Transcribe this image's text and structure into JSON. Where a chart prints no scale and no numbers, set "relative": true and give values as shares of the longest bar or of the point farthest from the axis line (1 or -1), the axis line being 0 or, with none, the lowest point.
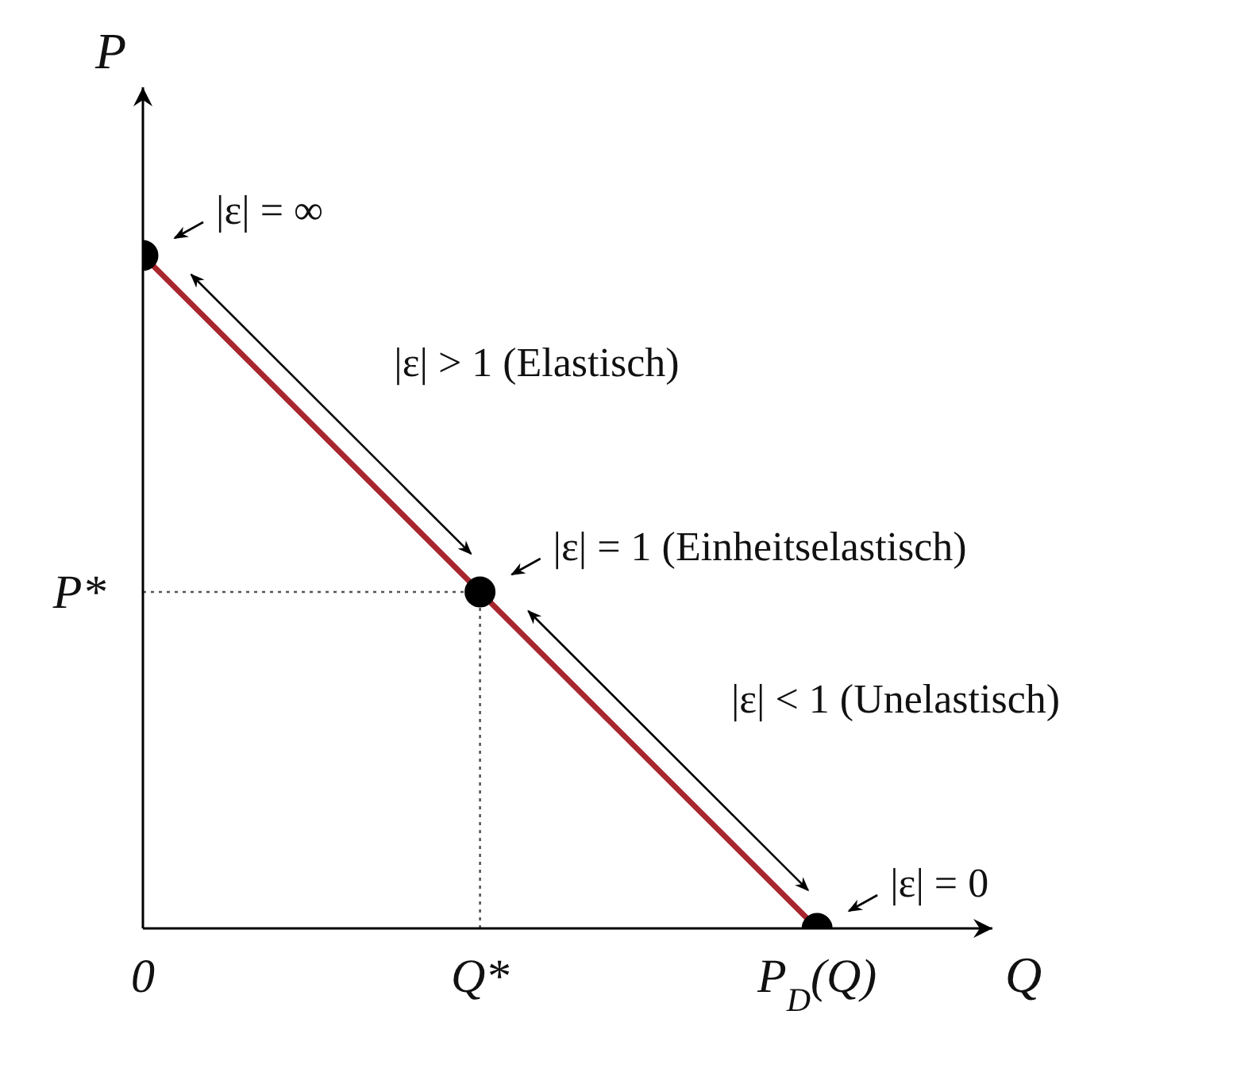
{
  "chart_data": {
    "type": "line",
    "xlabel": "Q",
    "ylabel": "P",
    "relative": true,
    "categories": [
      "0",
      "Q*",
      "P$_{D}$(Q)"
    ],
    "series": [
      {
        "color": "#a8262e",
        "values": [
          1,
          0.5,
          0
        ]
      }
    ],
    "ref_lines": [
      {
        "axis": "x",
        "value": "Q*",
        "line_style": "dotted",
        "color": "#555555"
      },
      {
        "axis": "y",
        "value": 0.5,
        "label": "P*",
        "line_style": "dotted",
        "color": "#555555"
      }
    ],
    "annotations": [
      {
        "text": "|ε| = ∞",
        "x": "0",
        "y": 1
      },
      "|ε| > 1 (Elastisch)",
      {
        "text": "|ε| = 1 (Einheitselastisch)",
        "x": "Q*",
        "y": 0.5
      },
      "|ε| < 1 (Unelastisch)",
      {
        "text": "|ε| = 0",
        "x": "P$_{D}$(Q)",
        "y": 0
      }
    ],
    "marker": "circle",
    "line_style": "solid",
    "grid": false,
    "legend": false
  }
}
